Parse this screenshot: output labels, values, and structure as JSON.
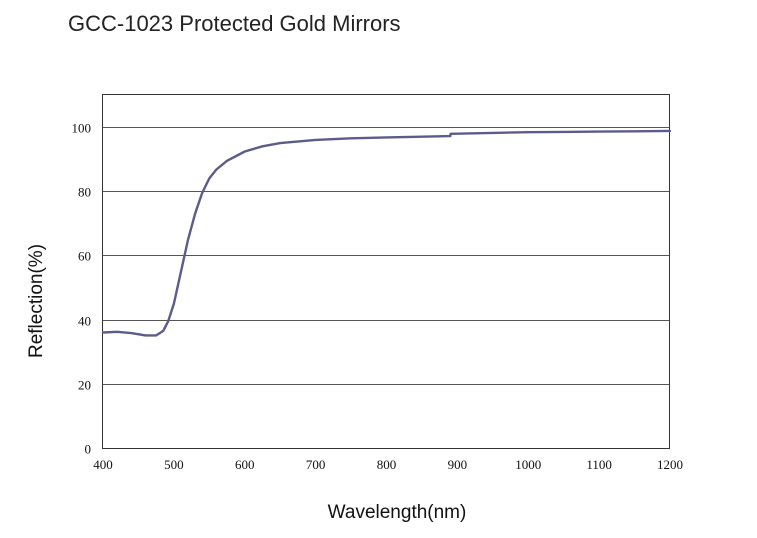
{
  "chart_data": {
    "type": "line",
    "title": "GCC-1023 Protected Gold Mirrors",
    "xlabel": "Wavelength(nm)",
    "ylabel": "Reflection(%)",
    "xlim": [
      400,
      1200
    ],
    "ylim": [
      0,
      110
    ],
    "x_ticks": [
      400,
      500,
      600,
      700,
      800,
      900,
      1000,
      1100,
      1200
    ],
    "y_ticks": [
      0,
      20,
      40,
      60,
      80,
      100
    ],
    "grid": "horizontal",
    "line_color": "#5b5b8c",
    "series": [
      {
        "x": [
          400,
          420,
          440,
          460,
          475,
          485,
          492,
          500,
          510,
          520,
          530,
          540,
          550,
          560,
          575,
          600,
          625,
          650,
          700,
          750,
          800,
          850,
          890,
          890.5,
          950,
          1000,
          1050,
          1100,
          1150,
          1200
        ],
        "y": [
          36,
          36.2,
          35.8,
          35.1,
          35.1,
          36.5,
          39.5,
          45,
          55,
          65,
          73,
          79.5,
          84,
          86.8,
          89.5,
          92.4,
          94,
          95,
          96,
          96.5,
          96.8,
          97,
          97.2,
          97.9,
          98.2,
          98.4,
          98.5,
          98.6,
          98.7,
          98.8
        ]
      }
    ]
  }
}
